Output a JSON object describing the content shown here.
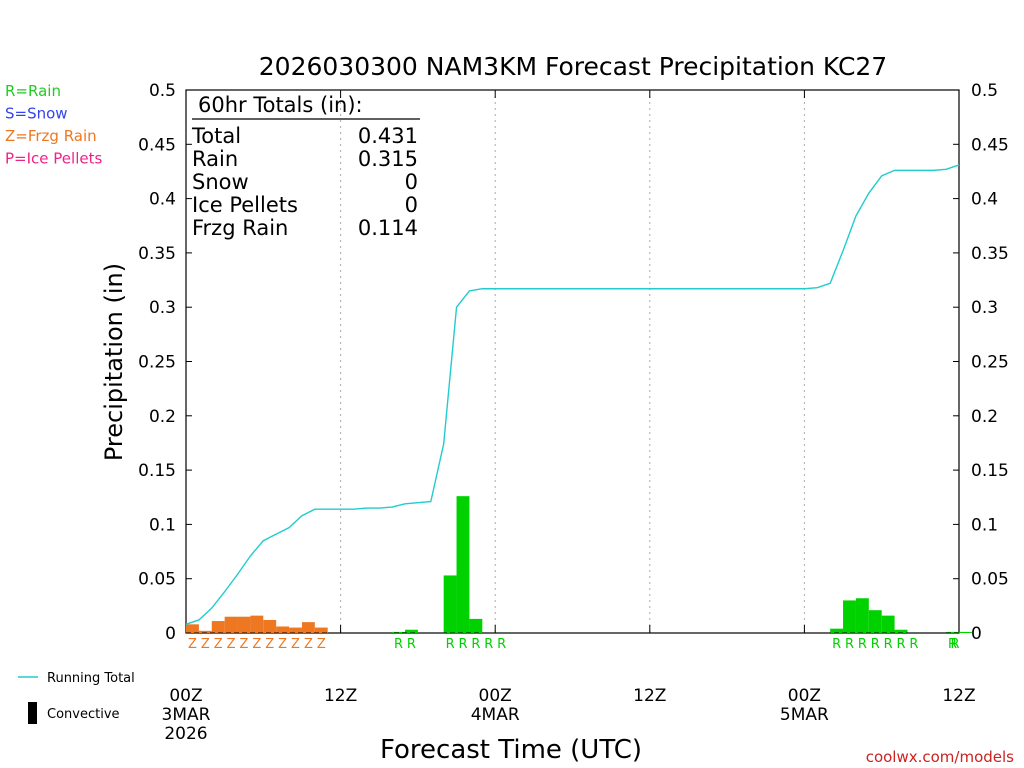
{
  "chart_data": {
    "type": "bar",
    "title": "2026030300 NAM3KM Forecast Precipitation KC27",
    "xlabel": "Forecast Time (UTC)",
    "ylabel": "Precipitation (in)",
    "ylim": [
      0,
      0.5
    ],
    "yticks": [
      "0",
      "0.05",
      "0.1",
      "0.15",
      "0.2",
      "0.25",
      "0.3",
      "0.35",
      "0.4",
      "0.45",
      "0.5"
    ],
    "xlim_hours": [
      0,
      60
    ],
    "xticks": [
      {
        "hour": 0,
        "label": "00Z",
        "sub": "3MAR",
        "year": "2026"
      },
      {
        "hour": 12,
        "label": "12Z",
        "sub": "",
        "year": ""
      },
      {
        "hour": 24,
        "label": "00Z",
        "sub": "4MAR",
        "year": ""
      },
      {
        "hour": 36,
        "label": "12Z",
        "sub": "",
        "year": ""
      },
      {
        "hour": 48,
        "label": "00Z",
        "sub": "5MAR",
        "year": ""
      },
      {
        "hour": 60,
        "label": "12Z",
        "sub": "",
        "year": ""
      }
    ],
    "ptype_legend": [
      {
        "text": "R=Rain",
        "color": "#22cc22"
      },
      {
        "text": "S=Snow",
        "color": "#3344ee"
      },
      {
        "text": "Z=Frzg Rain",
        "color": "#ee7722"
      },
      {
        "text": "P=Ice Pellets",
        "color": "#ee2288"
      }
    ],
    "totals": {
      "header": "60hr Totals (in):",
      "rows": [
        {
          "label": "Total",
          "value": "0.431"
        },
        {
          "label": "Rain",
          "value": "0.315"
        },
        {
          "label": "Snow",
          "value": "0"
        },
        {
          "label": "Ice Pellets",
          "value": "0"
        },
        {
          "label": "Frzg Rain",
          "value": "0.114"
        }
      ]
    },
    "series": [
      {
        "name": "Freezing Rain (hourly)",
        "color": "#ee7722",
        "bars": [
          {
            "hour": 0,
            "value": 0.008,
            "ptype": "Z"
          },
          {
            "hour": 1,
            "value": 0.002,
            "ptype": "Z"
          },
          {
            "hour": 2,
            "value": 0.011,
            "ptype": "Z"
          },
          {
            "hour": 3,
            "value": 0.015,
            "ptype": "Z"
          },
          {
            "hour": 4,
            "value": 0.015,
            "ptype": "Z"
          },
          {
            "hour": 5,
            "value": 0.016,
            "ptype": "Z"
          },
          {
            "hour": 6,
            "value": 0.012,
            "ptype": "Z"
          },
          {
            "hour": 7,
            "value": 0.006,
            "ptype": "Z"
          },
          {
            "hour": 8,
            "value": 0.005,
            "ptype": "Z"
          },
          {
            "hour": 9,
            "value": 0.01,
            "ptype": "Z"
          },
          {
            "hour": 10,
            "value": 0.005,
            "ptype": "Z"
          }
        ]
      },
      {
        "name": "Rain (hourly)",
        "color": "#00d200",
        "bars": [
          {
            "hour": 16,
            "value": 0.001,
            "ptype": "R"
          },
          {
            "hour": 17,
            "value": 0.003,
            "ptype": "R"
          },
          {
            "hour": 20,
            "value": 0.053,
            "ptype": "R"
          },
          {
            "hour": 21,
            "value": 0.126,
            "ptype": "R"
          },
          {
            "hour": 22,
            "value": 0.013,
            "ptype": "R"
          },
          {
            "hour": 23,
            "value": 0.0,
            "ptype": "R"
          },
          {
            "hour": 24,
            "value": 0.0,
            "ptype": "R"
          },
          {
            "hour": 50,
            "value": 0.004,
            "ptype": "R"
          },
          {
            "hour": 51,
            "value": 0.03,
            "ptype": "R"
          },
          {
            "hour": 52,
            "value": 0.032,
            "ptype": "R"
          },
          {
            "hour": 53,
            "value": 0.021,
            "ptype": "R"
          },
          {
            "hour": 54,
            "value": 0.016,
            "ptype": "R"
          },
          {
            "hour": 55,
            "value": 0.003,
            "ptype": "R"
          },
          {
            "hour": 56,
            "value": 0.0,
            "ptype": "R"
          },
          {
            "hour": 59,
            "value": 0.001,
            "ptype": "R"
          },
          {
            "hour": 60,
            "value": 0.001,
            "ptype": "R"
          }
        ]
      },
      {
        "name": "Running Total",
        "color": "#22cccc",
        "points": [
          [
            0,
            0.008
          ],
          [
            1,
            0.012
          ],
          [
            2,
            0.023
          ],
          [
            3,
            0.038
          ],
          [
            4,
            0.054
          ],
          [
            5,
            0.071
          ],
          [
            6,
            0.085
          ],
          [
            7,
            0.091
          ],
          [
            8,
            0.097
          ],
          [
            9,
            0.108
          ],
          [
            10,
            0.114
          ],
          [
            11,
            0.114
          ],
          [
            12,
            0.114
          ],
          [
            13,
            0.114
          ],
          [
            14,
            0.115
          ],
          [
            15,
            0.115
          ],
          [
            16,
            0.116
          ],
          [
            17,
            0.119
          ],
          [
            18,
            0.12
          ],
          [
            19,
            0.121
          ],
          [
            20,
            0.174
          ],
          [
            21,
            0.3
          ],
          [
            22,
            0.315
          ],
          [
            23,
            0.317
          ],
          [
            24,
            0.317
          ],
          [
            30,
            0.317
          ],
          [
            36,
            0.317
          ],
          [
            42,
            0.317
          ],
          [
            48,
            0.317
          ],
          [
            49,
            0.318
          ],
          [
            50,
            0.322
          ],
          [
            51,
            0.352
          ],
          [
            52,
            0.384
          ],
          [
            53,
            0.405
          ],
          [
            54,
            0.421
          ],
          [
            55,
            0.426
          ],
          [
            56,
            0.426
          ],
          [
            57,
            0.426
          ],
          [
            58,
            0.426
          ],
          [
            59,
            0.427
          ],
          [
            60,
            0.431
          ]
        ]
      }
    ],
    "bottom_legend": [
      {
        "text": "Running Total",
        "type": "line",
        "color": "#22cccc"
      },
      {
        "text": "Convective",
        "type": "box",
        "color": "#000000"
      }
    ]
  },
  "credit": "coolwx.com/models"
}
